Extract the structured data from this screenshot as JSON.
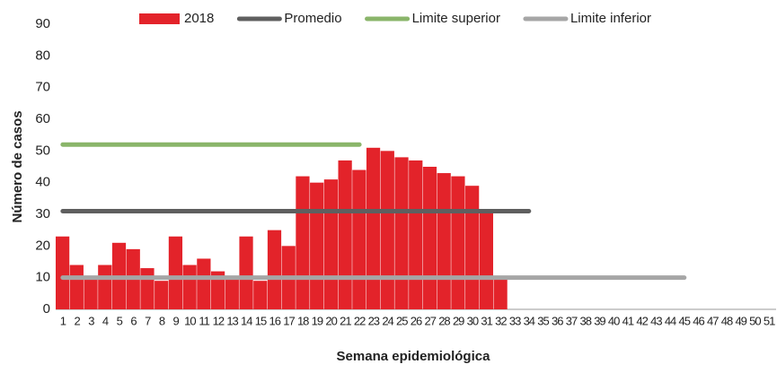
{
  "chart_data": {
    "type": "bar",
    "x_label": "Semana epidemiológica",
    "y_label": "Número de casos",
    "categories": [
      "1",
      "2",
      "3",
      "4",
      "5",
      "6",
      "7",
      "8",
      "9",
      "10",
      "11",
      "12",
      "13",
      "14",
      "15",
      "16",
      "17",
      "18",
      "19",
      "20",
      "21",
      "22",
      "23",
      "24",
      "25",
      "26",
      "27",
      "28",
      "29",
      "30",
      "31",
      "32",
      "33",
      "34",
      "35",
      "36",
      "37",
      "38",
      "39",
      "40",
      "41",
      "42",
      "43",
      "44",
      "45",
      "46",
      "47",
      "48",
      "49",
      "50",
      "51"
    ],
    "ylim": [
      0,
      90
    ],
    "yticks": [
      0,
      10,
      20,
      30,
      40,
      50,
      60,
      70,
      80,
      90
    ],
    "series": [
      {
        "name": "2018",
        "type": "bar",
        "color": "#e3232a",
        "values": [
          23,
          14,
          10,
          14,
          21,
          19,
          13,
          9,
          23,
          14,
          16,
          12,
          10,
          23,
          9,
          25,
          20,
          42,
          40,
          41,
          47,
          44,
          51,
          50,
          48,
          47,
          45,
          43,
          42,
          39,
          31,
          10,
          null,
          null,
          null,
          null,
          null,
          null,
          null,
          null,
          null,
          null,
          null,
          null,
          null,
          null,
          null,
          null,
          null,
          null,
          null
        ]
      },
      {
        "name": "Promedio",
        "type": "line",
        "color": "#5f5f5f",
        "values": [
          31,
          31,
          31,
          31,
          31,
          31,
          31,
          31,
          31,
          31,
          31,
          31,
          31,
          31,
          31,
          31,
          31,
          31,
          31,
          31,
          31,
          31,
          31,
          31,
          31,
          31,
          31,
          31,
          31,
          31,
          31,
          31,
          31,
          31,
          null,
          null,
          null,
          null,
          null,
          null,
          null,
          null,
          null,
          null,
          null,
          null,
          null,
          null,
          null,
          null,
          null
        ]
      },
      {
        "name": "Limite superior",
        "type": "line",
        "color": "#8ab56a",
        "values": [
          52,
          52,
          52,
          52,
          52,
          52,
          52,
          52,
          52,
          52,
          52,
          52,
          52,
          52,
          52,
          52,
          52,
          52,
          52,
          52,
          52,
          52,
          null,
          null,
          null,
          null,
          null,
          null,
          null,
          null,
          null,
          null,
          null,
          null,
          null,
          null,
          null,
          null,
          null,
          null,
          null,
          null,
          null,
          null,
          null,
          null,
          null,
          null,
          null,
          null,
          null
        ]
      },
      {
        "name": "Limite inferior",
        "type": "line",
        "color": "#a6a6a6",
        "values": [
          10,
          10,
          10,
          10,
          10,
          10,
          10,
          10,
          10,
          10,
          10,
          10,
          10,
          10,
          10,
          10,
          10,
          10,
          10,
          10,
          10,
          10,
          10,
          10,
          10,
          10,
          10,
          10,
          10,
          10,
          10,
          10,
          10,
          10,
          10,
          10,
          10,
          10,
          10,
          10,
          10,
          10,
          10,
          10,
          10,
          null,
          null,
          null,
          null,
          null,
          null
        ]
      }
    ]
  }
}
